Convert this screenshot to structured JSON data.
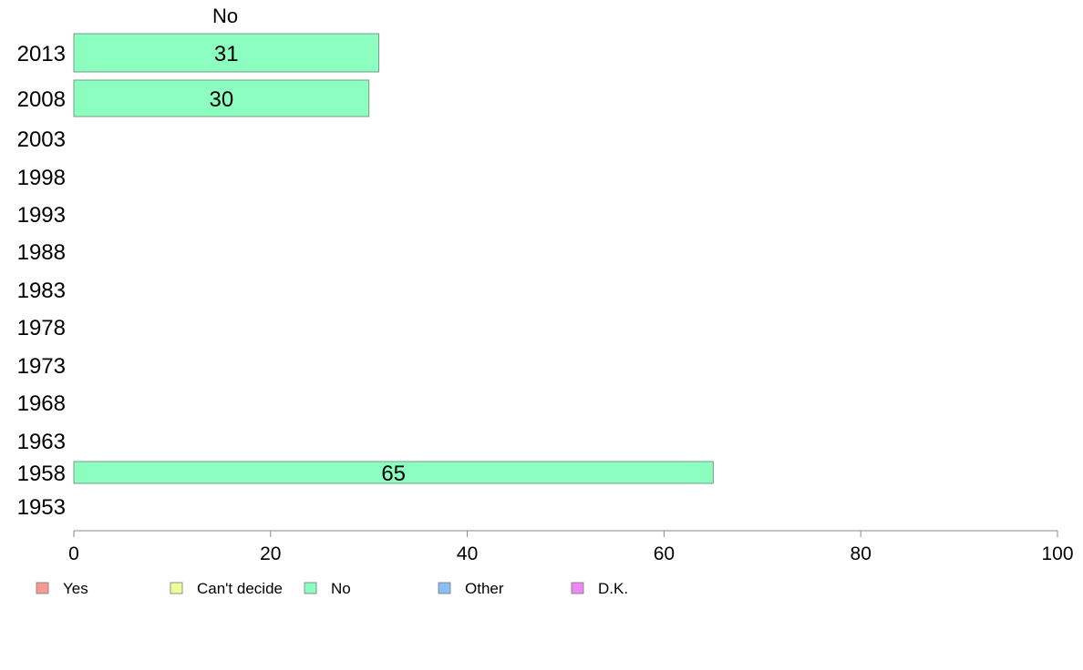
{
  "chart_data": {
    "type": "bar",
    "orientation": "horizontal",
    "title": "",
    "xlabel": "",
    "ylabel": "",
    "xlim": [
      0,
      100
    ],
    "x_ticks": [
      "0",
      "20",
      "40",
      "60",
      "80",
      "100"
    ],
    "categories": [
      "2013",
      "2008",
      "2003",
      "1998",
      "1993",
      "1988",
      "1983",
      "1978",
      "1973",
      "1968",
      "1963",
      "1958",
      "1953"
    ],
    "column_header": "No",
    "series": [
      {
        "name": "No",
        "color": "#8cffc0",
        "values": [
          31,
          30,
          null,
          null,
          null,
          null,
          null,
          null,
          null,
          null,
          null,
          65,
          null
        ],
        "labels": [
          "31",
          "30",
          "",
          "",
          "",
          "",
          "",
          "",
          "",
          "",
          "",
          "65",
          ""
        ]
      }
    ],
    "legend": {
      "position": "bottom",
      "items": [
        {
          "label": "Yes",
          "color": "#f79a93"
        },
        {
          "label": "Can't decide",
          "color": "#eeff9a"
        },
        {
          "label": "No",
          "color": "#8cffc0"
        },
        {
          "label": "Other",
          "color": "#8bbdf9"
        },
        {
          "label": "D.K.",
          "color": "#ef87f5"
        }
      ]
    },
    "grid": false
  }
}
